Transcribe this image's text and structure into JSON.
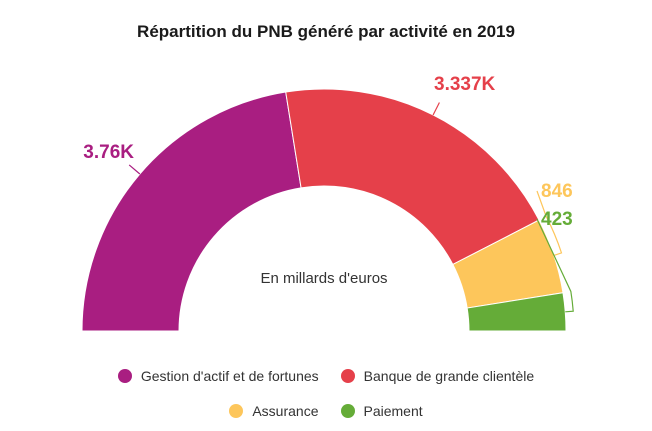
{
  "chart_data": {
    "type": "pie",
    "variant": "semi-donut",
    "title": "Répartition du PNB généré par activité en 2019",
    "center_label": "En millards d'euros",
    "legend_position": "bottom",
    "series": [
      {
        "name": "Gestion d'actif et de fortunes",
        "value": 3760,
        "label": "3.76K",
        "color": "#a91e81"
      },
      {
        "name": "Banque de grande clientèle",
        "value": 3337,
        "label": "3.337K",
        "color": "#e5404a"
      },
      {
        "name": "Assurance",
        "value": 846,
        "label": "846",
        "color": "#fdc65b"
      },
      {
        "name": "Paiement",
        "value": 423,
        "label": "423",
        "color": "#65ac38"
      }
    ]
  }
}
